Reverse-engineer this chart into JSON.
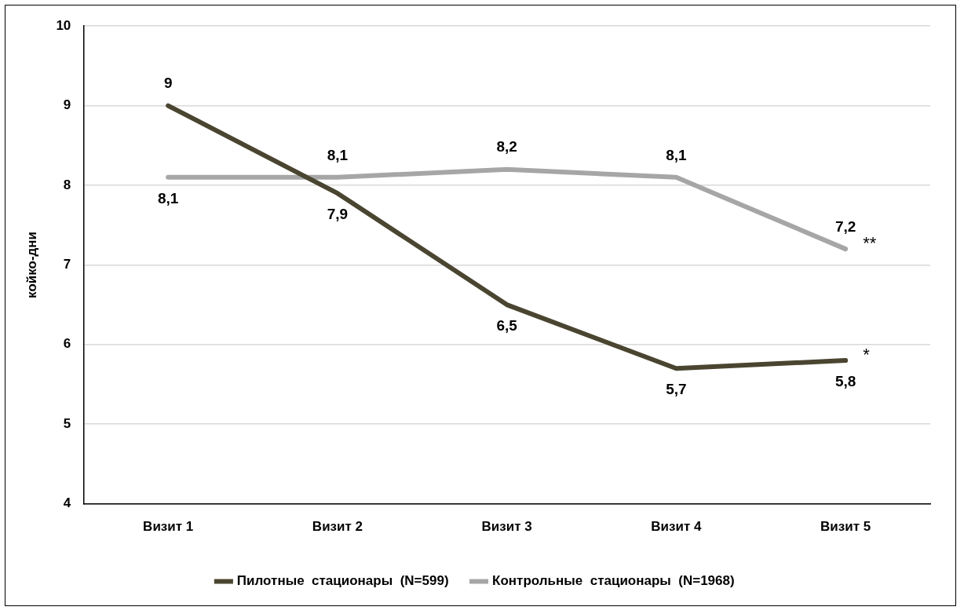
{
  "chart_data": {
    "type": "line",
    "ylabel": "койко-дни",
    "categories": [
      "Визит 1",
      "Визит 2",
      "Визит 3",
      "Визит 4",
      "Визит 5"
    ],
    "series": [
      {
        "name": "Пилотные  стационары  (N=599)",
        "color": "#4a4530",
        "values": [
          9,
          7.9,
          6.5,
          5.7,
          5.8
        ],
        "value_labels": [
          "9",
          "7,9",
          "6,5",
          "5,7",
          "5,8"
        ]
      },
      {
        "name": "Контрольные  стационары  (N=1968)",
        "color": "#a6a6a6",
        "values": [
          8.1,
          8.1,
          8.2,
          8.1,
          7.2
        ],
        "value_labels": [
          "8,1",
          "8,1",
          "8,2",
          "8,1",
          "7,2"
        ]
      }
    ],
    "ylim": [
      4,
      10
    ],
    "yticks": [
      4,
      5,
      6,
      7,
      8,
      9,
      10
    ],
    "grid": "y",
    "legend": "bottom",
    "marker": "none",
    "line_style": "solid",
    "annotations": [
      {
        "text": "*",
        "x": "Визит 5",
        "y": 5.8
      },
      {
        "text": "**",
        "x": "Визит 5",
        "y": 7.2
      }
    ]
  }
}
